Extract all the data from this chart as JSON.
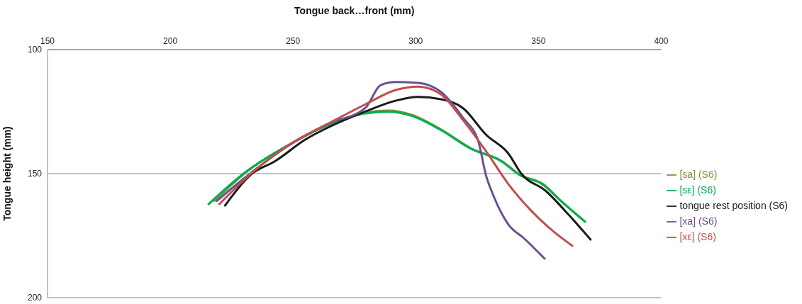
{
  "chart_data": {
    "type": "line",
    "xlabel": "Tongue back…front (mm)",
    "ylabel": "Tongue height (mm)",
    "xlim": [
      150,
      400
    ],
    "xticks": [
      150,
      200,
      250,
      300,
      350,
      400
    ],
    "ylim": [
      200,
      100
    ],
    "yticks": [
      100,
      150,
      200
    ],
    "grid": "y",
    "legend": "right",
    "marker": "none",
    "line_style": "solid",
    "series": [
      {
        "name": "[sa] (S6)",
        "color": "#77933c",
        "x": [
          218,
          231,
          249,
          264,
          280,
          289,
          298,
          310,
          322.5,
          335,
          342.5,
          352,
          359,
          369
        ],
        "values": [
          161,
          149.4,
          138,
          130.5,
          125.3,
          124.6,
          126.2,
          132,
          139.8,
          144.9,
          150.5,
          154.3,
          160.9,
          169.4
        ]
      },
      {
        "name": "[sε] (S6)",
        "color": "#00b050",
        "x": [
          215.6,
          230.6,
          249,
          264,
          279.6,
          288.8,
          298,
          310,
          322.5,
          334.7,
          342.4,
          351.6,
          359,
          369
        ],
        "values": [
          162.3,
          149.4,
          138,
          130.6,
          125.7,
          125.1,
          126.6,
          132.3,
          140,
          144.9,
          150.6,
          154.3,
          160.9,
          169.4
        ]
      },
      {
        "name": "tongue rest position (S6)",
        "color": "#1a1a1a",
        "x": [
          222.3,
          232.7,
          242.8,
          255,
          267.3,
          279.6,
          291.8,
          301,
          310.2,
          319.4,
          328.6,
          337.8,
          343,
          353,
          362.3,
          371.2
        ],
        "values": [
          162.9,
          150.5,
          144.9,
          136.3,
          130,
          124.9,
          120.6,
          119.1,
          120,
          123.7,
          134.3,
          142,
          150,
          157,
          166.6,
          176.6
        ]
      },
      {
        "name": "[xa] (S6)",
        "color": "#6b4f8f",
        "x": [
          219,
          233,
          249,
          264,
          279.6,
          285.7,
          291.8,
          301,
          310.2,
          319.4,
          325.5,
          328.6,
          331.7,
          337.8,
          344,
          352.5
        ],
        "values": [
          161,
          149.6,
          138.2,
          130,
          123.4,
          114.3,
          113.1,
          113.4,
          117,
          127.7,
          137,
          150.6,
          159,
          170.6,
          176,
          184.3
        ]
      },
      {
        "name": "[xε] (S6)",
        "color": "#c0504d",
        "x": [
          220,
          233.6,
          249,
          264,
          279.6,
          291.8,
          301,
          310.2,
          319.4,
          328.6,
          337.8,
          347,
          356.2,
          363.8
        ],
        "values": [
          162.3,
          149.4,
          138,
          130,
          122,
          116.3,
          114.9,
          118,
          128.6,
          140.9,
          154.3,
          164.9,
          173.4,
          179.1
        ]
      }
    ]
  }
}
